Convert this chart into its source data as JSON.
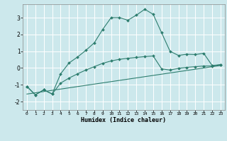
{
  "title": "",
  "xlabel": "Humidex (Indice chaleur)",
  "bg_color": "#cce8ec",
  "grid_color": "#ffffff",
  "line_color": "#2d7d6e",
  "xlim": [
    -0.5,
    23.5
  ],
  "ylim": [
    -2.5,
    3.8
  ],
  "yticks": [
    -2,
    -1,
    0,
    1,
    2,
    3
  ],
  "xticks": [
    0,
    1,
    2,
    3,
    4,
    5,
    6,
    7,
    8,
    9,
    10,
    11,
    12,
    13,
    14,
    15,
    16,
    17,
    18,
    19,
    20,
    21,
    22,
    23
  ],
  "line1_x": [
    0,
    1,
    2,
    3,
    4,
    5,
    6,
    7,
    8,
    9,
    10,
    11,
    12,
    13,
    14,
    15,
    16,
    17,
    18,
    19,
    20,
    21,
    22,
    23
  ],
  "line1_y": [
    -1.1,
    -1.6,
    -1.3,
    -1.55,
    -0.35,
    0.3,
    0.65,
    1.05,
    1.5,
    2.3,
    3.0,
    3.0,
    2.85,
    3.15,
    3.5,
    3.2,
    2.1,
    1.0,
    0.75,
    0.82,
    0.8,
    0.88,
    0.15,
    0.2
  ],
  "line2_x": [
    0,
    1,
    2,
    3,
    4,
    5,
    6,
    7,
    8,
    9,
    10,
    11,
    12,
    13,
    14,
    15,
    16,
    17,
    18,
    19,
    20,
    21,
    22,
    23
  ],
  "line2_y": [
    -1.1,
    -1.6,
    -1.3,
    -1.55,
    -0.9,
    -0.6,
    -0.35,
    -0.12,
    0.08,
    0.28,
    0.42,
    0.52,
    0.58,
    0.63,
    0.68,
    0.72,
    -0.05,
    -0.12,
    -0.02,
    0.04,
    0.08,
    0.12,
    0.12,
    0.2
  ],
  "line3_x": [
    0,
    23
  ],
  "line3_y": [
    -1.55,
    0.15
  ]
}
